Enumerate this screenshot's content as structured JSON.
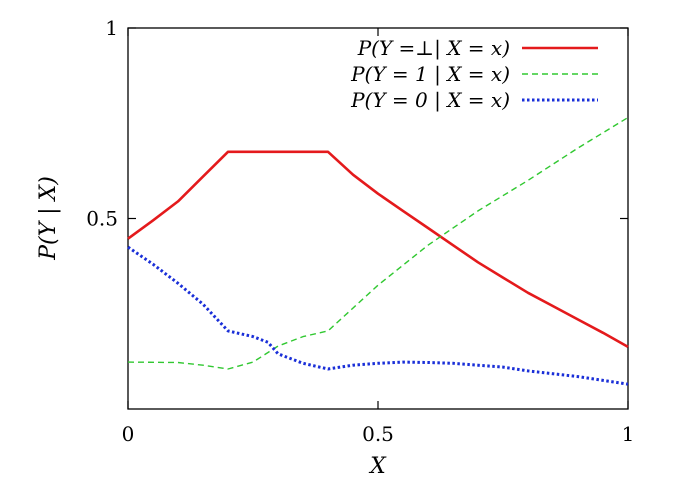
{
  "chart_data": {
    "type": "line",
    "title": "",
    "xlabel": "X",
    "ylabel": "P(Y | X)",
    "xlim": [
      0,
      1
    ],
    "ylim": [
      0,
      1
    ],
    "x_ticks": [
      {
        "value": 0,
        "label": "0"
      },
      {
        "value": 0.5,
        "label": "0.5"
      },
      {
        "value": 1,
        "label": "1"
      }
    ],
    "y_ticks": [
      {
        "value": 0.5,
        "label": "0.5"
      },
      {
        "value": 1,
        "label": "1"
      }
    ],
    "grid": false,
    "legend_placement": "top-right",
    "series": [
      {
        "name": "P(Y =⊥| X = x)",
        "color": "#e41a1c",
        "style": "solid",
        "points": [
          [
            0.0,
            0.447
          ],
          [
            0.05,
            0.495
          ],
          [
            0.1,
            0.545
          ],
          [
            0.15,
            0.61
          ],
          [
            0.2,
            0.675
          ],
          [
            0.3,
            0.675
          ],
          [
            0.4,
            0.675
          ],
          [
            0.45,
            0.615
          ],
          [
            0.5,
            0.565
          ],
          [
            0.55,
            0.52
          ],
          [
            0.6,
            0.475
          ],
          [
            0.65,
            0.43
          ],
          [
            0.7,
            0.385
          ],
          [
            0.75,
            0.345
          ],
          [
            0.8,
            0.305
          ],
          [
            0.85,
            0.27
          ],
          [
            0.9,
            0.235
          ],
          [
            0.95,
            0.2
          ],
          [
            1.0,
            0.163
          ]
        ]
      },
      {
        "name": "P(Y = 1 | X = x)",
        "color": "#31c831",
        "style": "dashed",
        "points": [
          [
            0.0,
            0.123
          ],
          [
            0.1,
            0.122
          ],
          [
            0.15,
            0.115
          ],
          [
            0.2,
            0.105
          ],
          [
            0.25,
            0.123
          ],
          [
            0.3,
            0.165
          ],
          [
            0.35,
            0.19
          ],
          [
            0.4,
            0.205
          ],
          [
            0.5,
            0.325
          ],
          [
            0.6,
            0.43
          ],
          [
            0.7,
            0.52
          ],
          [
            0.8,
            0.6
          ],
          [
            0.9,
            0.685
          ],
          [
            1.0,
            0.765
          ]
        ]
      },
      {
        "name": "P(Y = 0 | X = x)",
        "color": "#1a2fd8",
        "style": "dotted",
        "points": [
          [
            0.0,
            0.425
          ],
          [
            0.05,
            0.38
          ],
          [
            0.1,
            0.33
          ],
          [
            0.15,
            0.275
          ],
          [
            0.2,
            0.205
          ],
          [
            0.25,
            0.19
          ],
          [
            0.28,
            0.175
          ],
          [
            0.3,
            0.145
          ],
          [
            0.35,
            0.12
          ],
          [
            0.4,
            0.105
          ],
          [
            0.45,
            0.115
          ],
          [
            0.5,
            0.12
          ],
          [
            0.55,
            0.123
          ],
          [
            0.6,
            0.122
          ],
          [
            0.65,
            0.12
          ],
          [
            0.7,
            0.115
          ],
          [
            0.75,
            0.11
          ],
          [
            0.8,
            0.1
          ],
          [
            0.9,
            0.085
          ],
          [
            1.0,
            0.065
          ]
        ]
      }
    ]
  }
}
